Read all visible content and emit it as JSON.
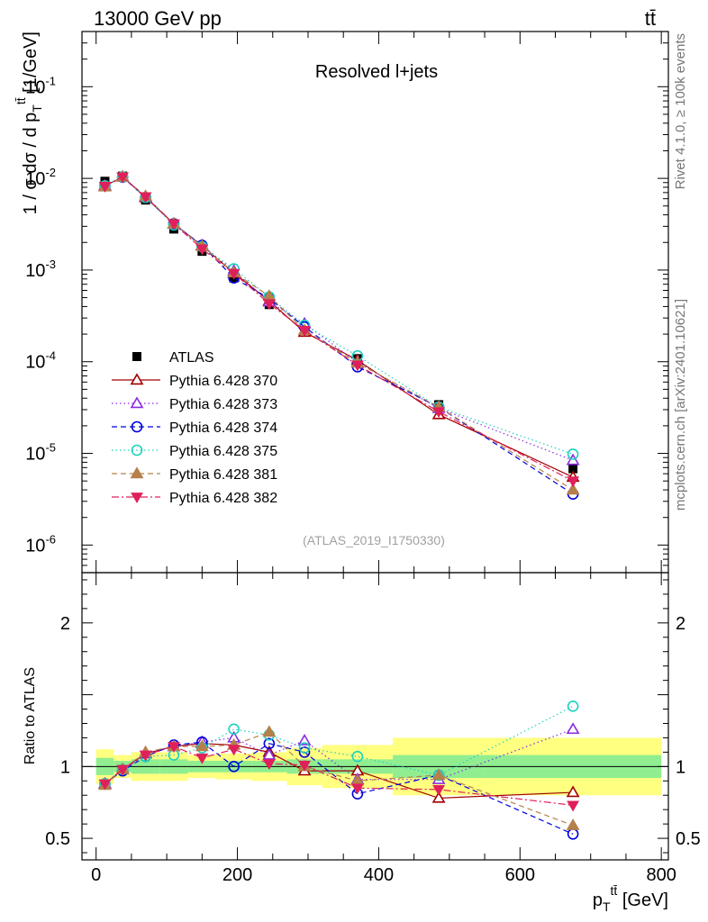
{
  "header": {
    "left_title": "13000 GeV pp",
    "right_title": "tt̄"
  },
  "side_labels": {
    "rivet": "Rivet 4.1.0, ≥ 100k events",
    "mcplots": "mcplots.cern.ch [arXiv:2401.10621]"
  },
  "chart_data": [
    {
      "type": "line",
      "panel": "main",
      "title": "Resolved l+jets",
      "analysis_tag": "(ATLAS_2019_I1750330)",
      "ylabel": "1 / σ dσ / d p_T^{tt̄} [1/GeV]",
      "yscale": "log",
      "ylim": [
        5e-07,
        0.4
      ],
      "xlim": [
        -20,
        810
      ],
      "ytick_labels": [
        "10^{-6}",
        "10^{-5}",
        "10^{-4}",
        "10^{-3}",
        "10^{-2}",
        "10^{-1}"
      ],
      "x": [
        12.5,
        37.5,
        70,
        110,
        150,
        195,
        245,
        295,
        370,
        485,
        675
      ],
      "series": [
        {
          "name": "ATLAS",
          "color": "#000000",
          "marker": "square",
          "style": "none",
          "values": [
            0.0093,
            0.0106,
            0.0058,
            0.0028,
            0.0016,
            0.00082,
            0.00042,
            0.00022,
            0.000108,
            3.4e-05,
            6.8e-06
          ]
        },
        {
          "name": "Pythia 6.428 370",
          "color": "#a00000",
          "marker": "triangle-open",
          "style": "solid",
          "values": [
            0.0083,
            0.0104,
            0.0062,
            0.0032,
            0.00184,
            0.00093,
            0.00046,
            0.00021,
            0.000104,
            2.65e-05,
            5.5e-06
          ]
        },
        {
          "name": "Pythia 6.428 373",
          "color": "#8a2be2",
          "marker": "triangle-open",
          "style": "dotted",
          "values": [
            0.0083,
            0.0104,
            0.0063,
            0.0032,
            0.00186,
            0.00098,
            0.00045,
            0.00026,
            9.8e-05,
            3.1e-05,
            8.4e-06
          ]
        },
        {
          "name": "Pythia 6.428 374",
          "color": "#0000dd",
          "marker": "circle-open",
          "style": "dashed",
          "values": [
            0.0083,
            0.0103,
            0.0062,
            0.0032,
            0.00186,
            0.00082,
            0.00049,
            0.00024,
            8.8e-05,
            3.2e-05,
            3.6e-06
          ]
        },
        {
          "name": "Pythia 6.428 375",
          "color": "#20d0c0",
          "marker": "circle-open",
          "style": "dotted",
          "values": [
            0.0083,
            0.0104,
            0.0062,
            0.0031,
            0.0018,
            0.00103,
            0.00051,
            0.00025,
            0.000116,
            3.2e-05,
            9.8e-06
          ]
        },
        {
          "name": "Pythia 6.428 381",
          "color": "#b5804a",
          "marker": "triangle-filled",
          "style": "dashed",
          "values": [
            0.0081,
            0.0104,
            0.0064,
            0.0032,
            0.00182,
            0.00094,
            0.00052,
            0.00022,
            9.7e-05,
            3.2e-05,
            4e-06
          ]
        },
        {
          "name": "Pythia 6.428 382",
          "color": "#e0205a",
          "marker": "triangle-down-filled",
          "style": "dashdot",
          "values": [
            0.0082,
            0.0104,
            0.0063,
            0.0032,
            0.0017,
            0.00092,
            0.00043,
            0.00022,
            9.2e-05,
            2.85e-05,
            5e-06
          ]
        }
      ]
    },
    {
      "type": "line",
      "panel": "ratio",
      "ylabel": "Ratio to ATLAS",
      "xlabel": "p_T^{tt̄} [GeV]",
      "ylim": [
        0.35,
        2.35
      ],
      "xlim": [
        -20,
        810
      ],
      "ytick_labels": [
        "0.5",
        "1",
        "2"
      ],
      "xtick_labels": [
        "0",
        "200",
        "400",
        "600",
        "800"
      ],
      "bin_edges": [
        0,
        25,
        50,
        90,
        130,
        170,
        220,
        270,
        320,
        420,
        550,
        800
      ],
      "band_inner": [
        0.06,
        0.04,
        0.05,
        0.05,
        0.04,
        0.04,
        0.04,
        0.05,
        0.05,
        0.08,
        0.08
      ],
      "band_outer": [
        0.12,
        0.08,
        0.1,
        0.1,
        0.08,
        0.09,
        0.1,
        0.13,
        0.15,
        0.2,
        0.2
      ],
      "x": [
        12.5,
        37.5,
        70,
        110,
        150,
        195,
        245,
        295,
        370,
        485,
        675
      ],
      "series": [
        {
          "name": "Pythia 6.428 370",
          "color": "#a00000",
          "marker": "triangle-open",
          "style": "solid",
          "values": [
            0.88,
            0.98,
            1.09,
            1.14,
            1.16,
            1.15,
            1.1,
            0.97,
            0.97,
            0.78,
            0.82
          ]
        },
        {
          "name": "Pythia 6.428 373",
          "color": "#8a2be2",
          "marker": "triangle-open",
          "style": "dotted",
          "values": [
            0.88,
            0.98,
            1.09,
            1.14,
            1.17,
            1.2,
            1.08,
            1.18,
            0.91,
            0.91,
            1.26
          ]
        },
        {
          "name": "Pythia 6.428 374",
          "color": "#0000dd",
          "marker": "circle-open",
          "style": "dashed",
          "values": [
            0.88,
            0.97,
            1.07,
            1.15,
            1.17,
            1.0,
            1.16,
            1.1,
            0.81,
            0.94,
            0.53
          ]
        },
        {
          "name": "Pythia 6.428 375",
          "color": "#20d0c0",
          "marker": "circle-open",
          "style": "dotted",
          "values": [
            0.88,
            0.98,
            1.07,
            1.08,
            1.13,
            1.26,
            1.22,
            1.13,
            1.07,
            0.94,
            1.42
          ]
        },
        {
          "name": "Pythia 6.428 381",
          "color": "#b5804a",
          "marker": "triangle-filled",
          "style": "dashed",
          "values": [
            0.87,
            0.98,
            1.1,
            1.14,
            1.14,
            1.15,
            1.24,
            1.0,
            0.9,
            0.94,
            0.59
          ]
        },
        {
          "name": "Pythia 6.428 382",
          "color": "#e0205a",
          "marker": "triangle-down-filled",
          "style": "dashdot",
          "values": [
            0.88,
            0.98,
            1.08,
            1.14,
            1.06,
            1.12,
            1.02,
            1.01,
            0.85,
            0.84,
            0.73
          ]
        }
      ]
    }
  ]
}
